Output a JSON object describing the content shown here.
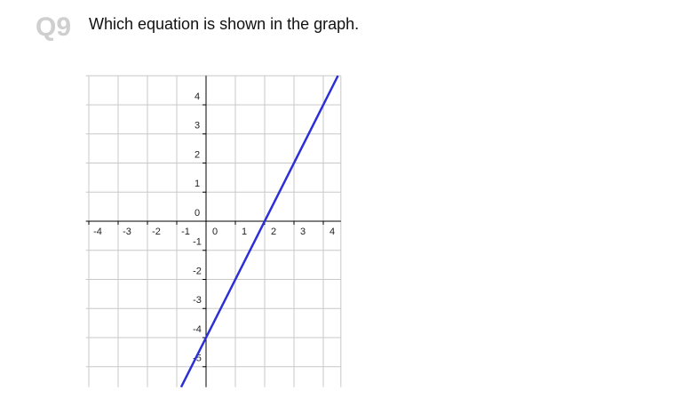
{
  "question": {
    "number": "Q9",
    "text": "Which equation is shown in the graph."
  },
  "chart_data": {
    "type": "line",
    "series": [
      {
        "color": "#2b2fd6",
        "x": [
          -0.85,
          4.5
        ],
        "values": [
          -5.7,
          5
        ]
      }
    ],
    "xlim": [
      -4.1,
      4.6
    ],
    "ylim": [
      -5.7,
      5
    ],
    "xticks": [
      -4,
      -3,
      -2,
      -1,
      0,
      1,
      2,
      3,
      4
    ],
    "yticks": [
      -5,
      -4,
      -3,
      -2,
      -1,
      0,
      1,
      2,
      3,
      4
    ],
    "grid": true
  }
}
